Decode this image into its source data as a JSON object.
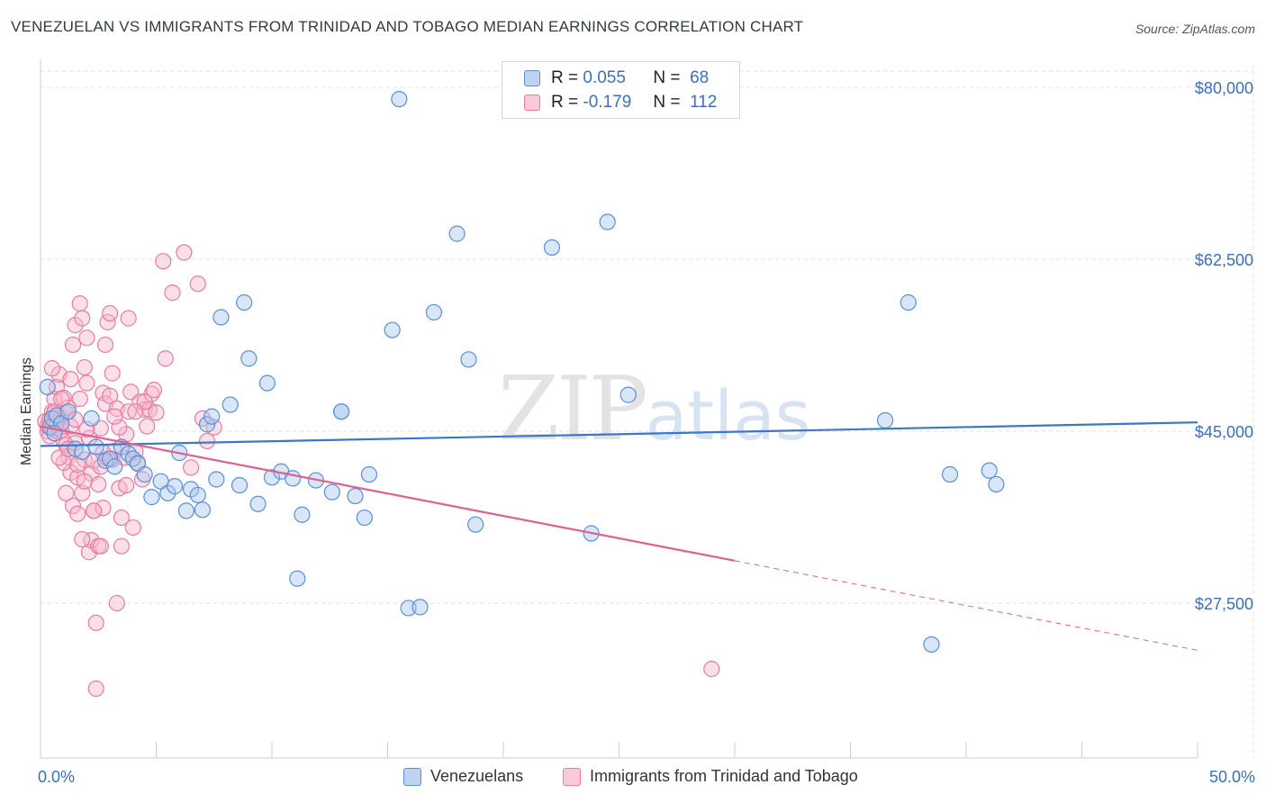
{
  "title": "VENEZUELAN VS IMMIGRANTS FROM TRINIDAD AND TOBAGO MEDIAN EARNINGS CORRELATION CHART",
  "source": "Source: ZipAtlas.com",
  "watermark": {
    "zip": "ZIP",
    "atlas": "atlas"
  },
  "legend": {
    "venezuelans": {
      "r_label": "R =",
      "r_value": "0.055",
      "n_label": "N =",
      "n_value": "68"
    },
    "trinidad": {
      "r_label": "R =",
      "r_value": "-0.179",
      "n_label": "N =",
      "n_value": "112"
    }
  },
  "bottom_legend": {
    "venezuelans": "Venezuelans",
    "trinidad": "Immigrants from Trinidad and Tobago"
  },
  "colors": {
    "blue_fill": "#a9c8ee",
    "blue_stroke": "#5b8fd6",
    "blue_line": "#3a78c9",
    "pink_fill": "#f6b8cc",
    "pink_stroke": "#e87da0",
    "pink_line": "#e0608e",
    "grid": "#e2e2e2",
    "axis_text": "#3b6fc1"
  },
  "chart_data": {
    "type": "scatter",
    "title": "VENEZUELAN VS IMMIGRANTS FROM TRINIDAD AND TOBAGO MEDIAN EARNINGS CORRELATION CHART",
    "xlabel": "",
    "ylabel": "Median Earnings",
    "xlim": [
      0,
      50
    ],
    "ylim": [
      10000,
      82000
    ],
    "x_tick_labels": [
      "0.0%",
      "50.0%"
    ],
    "y_ticks": [
      {
        "value": 27500,
        "label": "$27,500"
      },
      {
        "value": 45000,
        "label": "$45,000"
      },
      {
        "value": 62500,
        "label": "$62,500"
      },
      {
        "value": 80000,
        "label": "$80,000"
      }
    ],
    "grid": true,
    "series": [
      {
        "name": "Venezuelans",
        "r": 0.055,
        "n": 68,
        "trend": {
          "x0": 0,
          "y0": 43500,
          "x1": 50,
          "y1": 45900,
          "solid_until": 50
        },
        "points": [
          [
            0.3,
            49500
          ],
          [
            0.4,
            45400
          ],
          [
            0.5,
            46300
          ],
          [
            0.7,
            46600
          ],
          [
            0.9,
            45800
          ],
          [
            1.2,
            47000
          ],
          [
            1.5,
            43200
          ],
          [
            1.8,
            42900
          ],
          [
            2.2,
            46300
          ],
          [
            2.4,
            43400
          ],
          [
            2.8,
            42000
          ],
          [
            3.0,
            42200
          ],
          [
            3.2,
            41400
          ],
          [
            3.5,
            43400
          ],
          [
            3.8,
            42700
          ],
          [
            4.0,
            42200
          ],
          [
            4.2,
            41700
          ],
          [
            4.5,
            40600
          ],
          [
            4.8,
            38300
          ],
          [
            5.2,
            39900
          ],
          [
            5.5,
            38700
          ],
          [
            5.8,
            39400
          ],
          [
            6.0,
            42800
          ],
          [
            6.3,
            36900
          ],
          [
            6.5,
            39100
          ],
          [
            6.8,
            38500
          ],
          [
            7.0,
            37000
          ],
          [
            7.2,
            45700
          ],
          [
            7.4,
            46500
          ],
          [
            7.6,
            40100
          ],
          [
            7.8,
            56600
          ],
          [
            8.2,
            47700
          ],
          [
            8.6,
            39500
          ],
          [
            8.8,
            58100
          ],
          [
            9.0,
            52400
          ],
          [
            9.4,
            37600
          ],
          [
            9.8,
            49900
          ],
          [
            10.0,
            40300
          ],
          [
            10.4,
            40900
          ],
          [
            10.9,
            40200
          ],
          [
            11.1,
            30000
          ],
          [
            11.3,
            36500
          ],
          [
            11.9,
            40000
          ],
          [
            12.6,
            38800
          ],
          [
            13.0,
            47000
          ],
          [
            13.6,
            38400
          ],
          [
            14.0,
            36200
          ],
          [
            14.2,
            40600
          ],
          [
            13.0,
            47000
          ],
          [
            15.2,
            55300
          ],
          [
            15.5,
            78800
          ],
          [
            15.9,
            27000
          ],
          [
            16.4,
            27100
          ],
          [
            17.0,
            57100
          ],
          [
            18.0,
            65100
          ],
          [
            18.5,
            52300
          ],
          [
            18.8,
            35500
          ],
          [
            22.1,
            63700
          ],
          [
            23.8,
            34600
          ],
          [
            24.5,
            66300
          ],
          [
            25.4,
            48700
          ],
          [
            36.5,
            46100
          ],
          [
            37.5,
            58100
          ],
          [
            39.3,
            40600
          ],
          [
            41.0,
            41000
          ],
          [
            41.3,
            39600
          ],
          [
            38.5,
            23300
          ],
          [
            0.6,
            44800
          ]
        ]
      },
      {
        "name": "Immigrants from Trinidad and Tobago",
        "r": -0.179,
        "n": 112,
        "trend": {
          "x0": 0,
          "y0": 45500,
          "x1": 50,
          "y1": 22700,
          "solid_until": 30
        },
        "points": [
          [
            0.2,
            46000
          ],
          [
            0.3,
            45500
          ],
          [
            0.3,
            45000
          ],
          [
            0.4,
            46200
          ],
          [
            0.4,
            44500
          ],
          [
            0.5,
            47000
          ],
          [
            0.5,
            45300
          ],
          [
            0.6,
            48300
          ],
          [
            0.6,
            46800
          ],
          [
            0.7,
            45800
          ],
          [
            0.7,
            49500
          ],
          [
            0.8,
            44900
          ],
          [
            0.8,
            50800
          ],
          [
            0.9,
            46400
          ],
          [
            0.9,
            45100
          ],
          [
            1.0,
            48400
          ],
          [
            1.0,
            44000
          ],
          [
            1.1,
            46900
          ],
          [
            1.1,
            43600
          ],
          [
            1.2,
            47400
          ],
          [
            1.2,
            42400
          ],
          [
            1.3,
            45500
          ],
          [
            1.3,
            40800
          ],
          [
            1.4,
            53800
          ],
          [
            1.4,
            37400
          ],
          [
            1.5,
            55800
          ],
          [
            1.5,
            43800
          ],
          [
            1.6,
            36600
          ],
          [
            1.6,
            40300
          ],
          [
            1.7,
            58000
          ],
          [
            1.7,
            48300
          ],
          [
            1.8,
            56500
          ],
          [
            1.8,
            38700
          ],
          [
            1.9,
            51500
          ],
          [
            1.9,
            42100
          ],
          [
            2.0,
            54500
          ],
          [
            2.0,
            49900
          ],
          [
            2.1,
            44300
          ],
          [
            2.1,
            32700
          ],
          [
            2.2,
            33900
          ],
          [
            2.2,
            40700
          ],
          [
            2.3,
            36900
          ],
          [
            2.3,
            42000
          ],
          [
            2.4,
            25500
          ],
          [
            2.4,
            18800
          ],
          [
            2.5,
            33300
          ],
          [
            2.5,
            39600
          ],
          [
            2.6,
            41400
          ],
          [
            2.6,
            45300
          ],
          [
            2.7,
            37200
          ],
          [
            2.7,
            48900
          ],
          [
            2.8,
            47800
          ],
          [
            2.8,
            53800
          ],
          [
            2.9,
            56100
          ],
          [
            3.0,
            57000
          ],
          [
            3.0,
            48600
          ],
          [
            3.1,
            50900
          ],
          [
            3.1,
            42100
          ],
          [
            3.2,
            43000
          ],
          [
            3.3,
            27500
          ],
          [
            3.3,
            47300
          ],
          [
            3.4,
            39200
          ],
          [
            3.5,
            36200
          ],
          [
            3.5,
            33300
          ],
          [
            3.6,
            42300
          ],
          [
            3.7,
            44700
          ],
          [
            3.8,
            56500
          ],
          [
            3.8,
            47000
          ],
          [
            3.9,
            49000
          ],
          [
            4.0,
            35200
          ],
          [
            4.1,
            42900
          ],
          [
            4.2,
            41800
          ],
          [
            4.3,
            48000
          ],
          [
            4.4,
            40100
          ],
          [
            4.5,
            47200
          ],
          [
            4.6,
            45500
          ],
          [
            4.7,
            47200
          ],
          [
            4.8,
            48800
          ],
          [
            4.9,
            49200
          ],
          [
            5.0,
            46900
          ],
          [
            5.3,
            62300
          ],
          [
            5.4,
            52400
          ],
          [
            5.7,
            59100
          ],
          [
            6.2,
            63200
          ],
          [
            6.5,
            41300
          ],
          [
            6.8,
            60000
          ],
          [
            7.0,
            46300
          ],
          [
            7.2,
            44000
          ],
          [
            7.5,
            45400
          ],
          [
            29.0,
            20800
          ],
          [
            0.5,
            51400
          ],
          [
            1.0,
            41800
          ],
          [
            1.3,
            50300
          ],
          [
            2.0,
            45200
          ],
          [
            2.9,
            42200
          ],
          [
            3.7,
            39500
          ],
          [
            4.5,
            48000
          ],
          [
            1.8,
            34000
          ],
          [
            1.5,
            46200
          ],
          [
            0.8,
            42300
          ],
          [
            2.6,
            33300
          ],
          [
            1.1,
            38700
          ],
          [
            3.4,
            45400
          ],
          [
            0.6,
            47000
          ],
          [
            1.9,
            39900
          ],
          [
            2.3,
            36900
          ],
          [
            0.9,
            48300
          ],
          [
            1.2,
            43200
          ],
          [
            4.1,
            47000
          ],
          [
            2.7,
            42800
          ],
          [
            1.6,
            41600
          ],
          [
            3.2,
            46500
          ]
        ]
      }
    ]
  }
}
